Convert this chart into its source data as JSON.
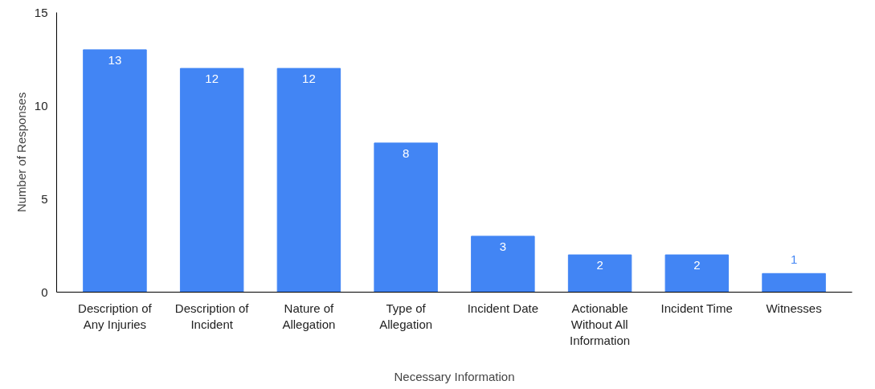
{
  "chart_data": {
    "type": "bar",
    "xlabel": "Necessary Information",
    "ylabel": "Number of Responses",
    "categories": [
      "Description of Any Injuries",
      "Description of Incident",
      "Nature of Allegation",
      "Type of Allegation",
      "Incident Date",
      "Actionable Without All Information",
      "Incident Time",
      "Witnesses"
    ],
    "values": [
      13,
      12,
      12,
      8,
      3,
      2,
      2,
      1
    ],
    "color": "#4285f4",
    "ylim": [
      0,
      15
    ],
    "yticks": [
      0,
      5,
      10,
      15
    ],
    "grid": false,
    "data_labels": true
  }
}
